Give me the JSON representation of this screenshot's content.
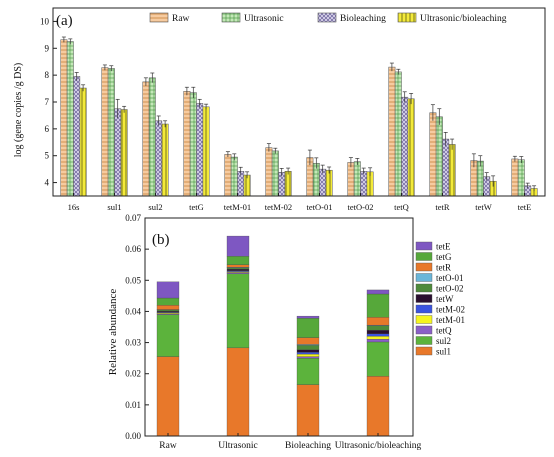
{
  "colors": {
    "raw": "#f6cba0",
    "ultrasonic": "#c4e8b8",
    "bioleaching": "#d7d3ea",
    "ultra_bio": "#f3ea3a",
    "tetE": "#7e57c2",
    "tetG": "#56a83a",
    "tetR": "#e8782a",
    "tetO-01": "#6ab6d9",
    "tetO-02": "#4e8a3a",
    "tetW": "#2a0f2f",
    "tetM-02": "#3a53e0",
    "tetM-01": "#f5f51e",
    "tetQ": "#8a5fc8",
    "sul2": "#5cb33c",
    "sul1": "#e8782a"
  },
  "chart_data": [
    {
      "panel": "(a)",
      "type": "bar",
      "ylabel": "log (gene copies /g DS)",
      "ylim": [
        3.5,
        10.5
      ],
      "yticks": [
        "4",
        "5",
        "6",
        "7",
        "8",
        "9",
        "10"
      ],
      "categories": [
        "16s",
        "sul1",
        "sul2",
        "tetG",
        "tetM-01",
        "tetM-02",
        "tetO-01",
        "tetO-02",
        "tetQ",
        "tetR",
        "tetW",
        "tetE"
      ],
      "legend": "top",
      "series": [
        {
          "name": "Raw",
          "key": "raw",
          "pattern": "h",
          "values": [
            9.32,
            8.28,
            7.75,
            7.4,
            5.05,
            5.3,
            4.93,
            4.75,
            8.3,
            6.6,
            4.82,
            4.88
          ],
          "errors": [
            0.1,
            0.1,
            0.15,
            0.15,
            0.1,
            0.15,
            0.28,
            0.18,
            0.15,
            0.3,
            0.25,
            0.1
          ]
        },
        {
          "name": "Ultrasonic",
          "key": "ultrasonic",
          "pattern": "grid",
          "values": [
            9.25,
            8.25,
            7.9,
            7.35,
            4.95,
            5.18,
            4.72,
            4.78,
            8.12,
            6.45,
            4.8,
            4.85
          ],
          "errors": [
            0.1,
            0.1,
            0.18,
            0.2,
            0.12,
            0.1,
            0.2,
            0.12,
            0.1,
            0.3,
            0.2,
            0.12
          ]
        },
        {
          "name": "Bioleaching",
          "key": "bioleaching",
          "pattern": "cross",
          "values": [
            7.95,
            6.75,
            6.3,
            6.95,
            4.42,
            4.38,
            4.5,
            4.42,
            7.18,
            5.62,
            4.22,
            3.88
          ],
          "errors": [
            0.15,
            0.35,
            0.18,
            0.15,
            0.15,
            0.15,
            0.15,
            0.12,
            0.2,
            0.25,
            0.15,
            0.1
          ]
        },
        {
          "name": "Ultrasonic/bioleaching",
          "key": "ultra_bio",
          "pattern": "v",
          "values": [
            7.52,
            6.72,
            6.18,
            6.82,
            4.28,
            4.42,
            4.46,
            4.4,
            7.12,
            5.42,
            4.05,
            3.78
          ],
          "errors": [
            0.12,
            0.12,
            0.12,
            0.1,
            0.12,
            0.12,
            0.12,
            0.15,
            0.2,
            0.2,
            0.2,
            0.1
          ]
        }
      ]
    },
    {
      "panel": "(b)",
      "type": "bar",
      "stacked": true,
      "ylabel": "Relative abundance",
      "ylim": [
        0,
        0.07
      ],
      "yticks": [
        "0.00",
        "0.01",
        "0.02",
        "0.03",
        "0.04",
        "0.05",
        "0.06",
        "0.07"
      ],
      "categories": [
        "Raw",
        "Ultrasonic",
        "Bioleaching",
        "Ultrasonic/bioleaching"
      ],
      "legend": "right",
      "series": [
        {
          "name": "sul1",
          "values": [
            0.0255,
            0.0283,
            0.0165,
            0.0192
          ]
        },
        {
          "name": "sul2",
          "values": [
            0.0135,
            0.0238,
            0.0085,
            0.011
          ]
        },
        {
          "name": "tetQ",
          "values": [
            0.0003,
            0.0004,
            0.0005,
            0.0009
          ]
        },
        {
          "name": "tetM-01",
          "values": [
            0.0003,
            0.0003,
            0.0008,
            0.0009
          ]
        },
        {
          "name": "tetM-02",
          "values": [
            0.0002,
            0.0003,
            0.0006,
            0.0008
          ]
        },
        {
          "name": "tetW",
          "values": [
            0.0003,
            0.0005,
            0.0008,
            0.0012
          ]
        },
        {
          "name": "tetO-02",
          "values": [
            0.0004,
            0.0004,
            0.0014,
            0.0014
          ]
        },
        {
          "name": "tetO-01",
          "values": [
            0.0001,
            0.0002,
            0.0003,
            0.0002
          ]
        },
        {
          "name": "tetR",
          "values": [
            0.0014,
            0.0008,
            0.0022,
            0.0025
          ]
        },
        {
          "name": "tetG",
          "values": [
            0.0023,
            0.0027,
            0.0062,
            0.0075
          ]
        },
        {
          "name": "tetE",
          "values": [
            0.0052,
            0.0065,
            0.0007,
            0.0013
          ]
        }
      ]
    }
  ]
}
